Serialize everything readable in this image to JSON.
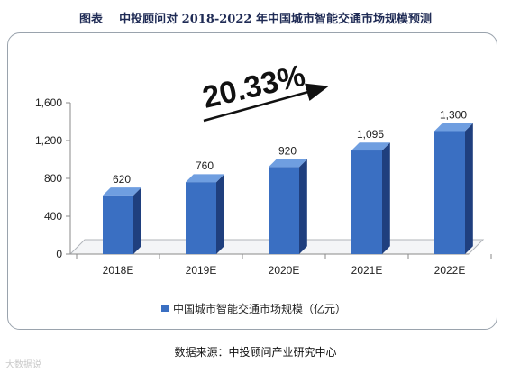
{
  "figure_label": "图表",
  "figure_title": "中投顾问对 2018-2022 年中国城市智能交通市场规模预测",
  "source_note": "数据来源：中投顾问产业研究中心",
  "watermark": "大数据说",
  "chart_data": {
    "type": "bar",
    "categories": [
      "2018E",
      "2019E",
      "2020E",
      "2021E",
      "2022E"
    ],
    "series": [
      {
        "name": "中国城市智能交通市场规模（亿元）",
        "values": [
          620,
          760,
          920,
          1095,
          1300
        ]
      }
    ],
    "data_labels": [
      "620",
      "760",
      "920",
      "1,095",
      "1,300"
    ],
    "yticks": [
      "0",
      "400",
      "800",
      "1,200",
      "1,600"
    ],
    "ylim": [
      0,
      1600
    ],
    "growth_annotation": "20.33%",
    "legend_position": "bottom-left",
    "bar_color": "#3a6fc2",
    "bar_side_color": "#1f3f7e",
    "bar_top_color": "#6f9ee0"
  }
}
